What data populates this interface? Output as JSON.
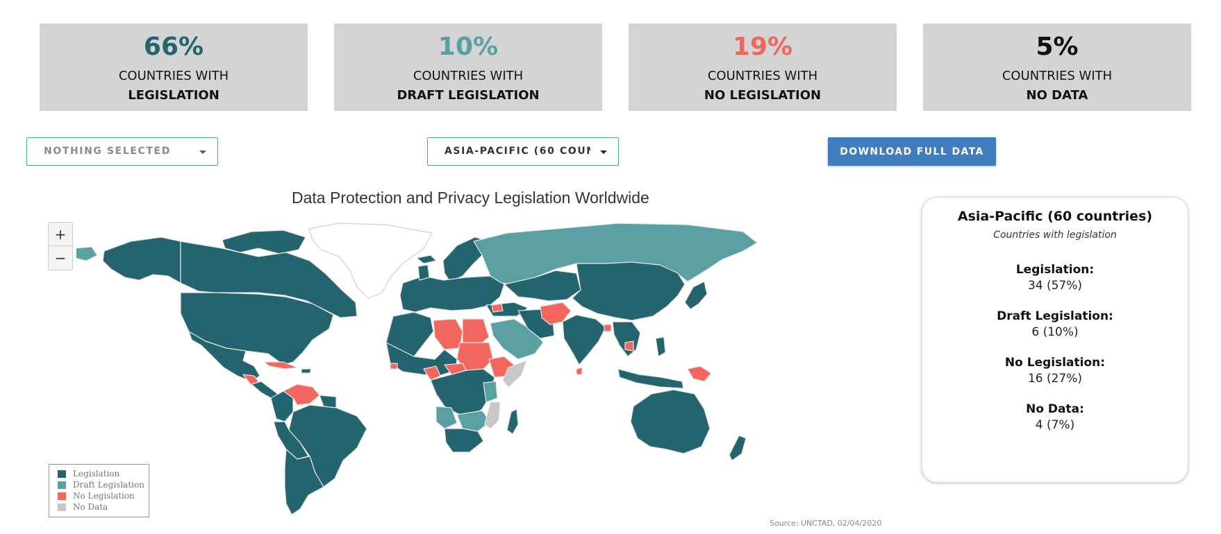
{
  "colors": {
    "legislation": "#23646e",
    "draft": "#5aa0a2",
    "none": "#f2665e",
    "nodata": "#c7c7c7",
    "ocean": "#ffffff",
    "border": "#e8e8e8"
  },
  "stats": [
    {
      "value": "66%",
      "line1": "COUNTRIES WITH",
      "line2": "LEGISLATION",
      "color": "#23646e"
    },
    {
      "value": "10%",
      "line1": "COUNTRIES WITH",
      "line2": "DRAFT LEGISLATION",
      "color": "#5aa0a2"
    },
    {
      "value": "19%",
      "line1": "COUNTRIES WITH",
      "line2": "NO LEGISLATION",
      "color": "#f2665e"
    },
    {
      "value": "5%",
      "line1": "COUNTRIES WITH",
      "line2": "NO DATA",
      "color": "#111111"
    }
  ],
  "controls": {
    "country_select": "NOTHING SELECTED",
    "region_select": "ASIA-PACIFIC (60 COUN",
    "download_label": "DOWNLOAD FULL DATA"
  },
  "map": {
    "title": "Data Protection and Privacy Legislation Worldwide",
    "zoom_in": "+",
    "zoom_out": "−",
    "source": "Source: UNCTAD, 02/04/2020",
    "legend": [
      {
        "label": "Legislation",
        "icon": "square-swatch"
      },
      {
        "label": "Draft Legislation",
        "icon": "square-swatch"
      },
      {
        "label": "No Legislation",
        "icon": "square-swatch"
      },
      {
        "label": "No Data",
        "icon": "square-swatch"
      }
    ]
  },
  "panel": {
    "title": "Asia-Pacific (60 countries)",
    "subtitle": "Countries with legislation",
    "rows": [
      {
        "label": "Legislation:",
        "value": "34 (57%)"
      },
      {
        "label": "Draft Legislation:",
        "value": "6 (10%)"
      },
      {
        "label": "No Legislation:",
        "value": "16 (27%)"
      },
      {
        "label": "No Data:",
        "value": "4 (7%)"
      }
    ]
  }
}
